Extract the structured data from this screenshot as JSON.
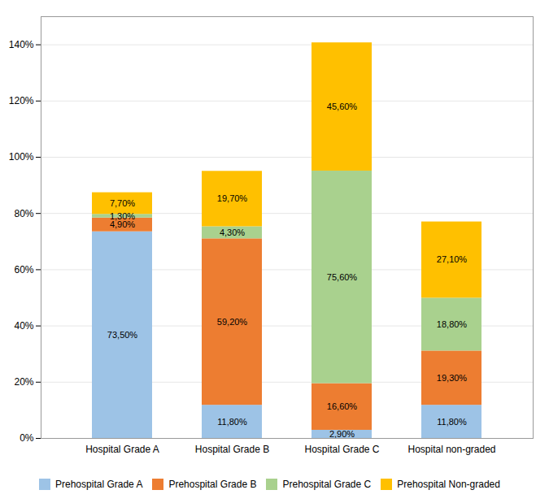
{
  "chart_data": {
    "type": "bar",
    "stacked": true,
    "categories": [
      "Hospital Grade A",
      "Hospital Grade B",
      "Hospital Grade C",
      "Hospital non-graded"
    ],
    "series": [
      {
        "name": "Prehospital Grade A",
        "color": "#9dc3e6",
        "values": [
          73.5,
          11.8,
          2.9,
          11.8
        ],
        "value_labels": [
          "73,50%",
          "11,80%",
          "2,90%",
          "11,80%"
        ]
      },
      {
        "name": "Prehospital Grade B",
        "color": "#ed7d31",
        "values": [
          4.9,
          59.2,
          16.6,
          19.3
        ],
        "value_labels": [
          "4,90%",
          "59,20%",
          "16,60%",
          "19,30%"
        ]
      },
      {
        "name": "Prehospital Grade C",
        "color": "#a9d18e",
        "values": [
          1.3,
          4.3,
          75.6,
          18.8
        ],
        "value_labels": [
          "1,30%",
          "4,30%",
          "75,60%",
          "18,80%"
        ]
      },
      {
        "name": "Prehospital Non-graded",
        "color": "#ffc000",
        "values": [
          7.7,
          19.7,
          45.6,
          27.1
        ],
        "value_labels": [
          "7,70%",
          "19,70%",
          "45,60%",
          "27,10%"
        ]
      }
    ],
    "ylim": [
      0,
      150
    ],
    "yticks": [
      {
        "value": 0,
        "label": "0%"
      },
      {
        "value": 20,
        "label": "20%"
      },
      {
        "value": 40,
        "label": "40%"
      },
      {
        "value": 60,
        "label": "60%"
      },
      {
        "value": 80,
        "label": "80%"
      },
      {
        "value": 100,
        "label": "100%"
      },
      {
        "value": 120,
        "label": "120%"
      },
      {
        "value": 140,
        "label": "140%"
      }
    ],
    "grid": true,
    "data_labels": true,
    "legend": "bottom"
  }
}
